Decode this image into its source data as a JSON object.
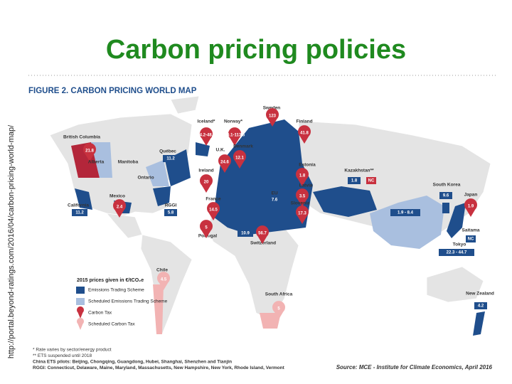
{
  "title": "Carbon pricing policies",
  "side_url": "http://portal.beyond-ratings.com/2016/04/carbon-pricing-world-map/",
  "figure": {
    "title": "FIGURE 2. CARBON PRICING WORLD MAP",
    "labels": [
      {
        "name": "British Columbia",
        "prices": [
          {
            "text": "21.8",
            "marker": "pin",
            "color": "#c8313f"
          }
        ]
      },
      {
        "name": "Alberta",
        "prices": []
      },
      {
        "name": "Manitoba",
        "prices": []
      },
      {
        "name": "Québec",
        "prices": [
          {
            "text": "11.2",
            "marker": "box",
            "color": "#1f4e8c"
          }
        ]
      },
      {
        "name": "Ontario",
        "prices": []
      },
      {
        "name": "California",
        "prices": [
          {
            "text": "11.2",
            "marker": "box",
            "color": "#1f4e8c"
          }
        ]
      },
      {
        "name": "Mexico",
        "prices": [
          {
            "text": "2.4",
            "marker": "pin",
            "color": "#c8313f"
          }
        ]
      },
      {
        "name": "RGGI",
        "prices": [
          {
            "text": "5.8",
            "marker": "box",
            "color": "#1f4e8c"
          }
        ]
      },
      {
        "name": "Chile",
        "prices": [
          {
            "text": "4.5",
            "marker": "pin",
            "color": "#f2b3b3"
          }
        ]
      },
      {
        "name": "Iceland*",
        "prices": [
          {
            "text": "34.2-48.6",
            "marker": "pin",
            "color": "#c8313f"
          }
        ]
      },
      {
        "name": "Norway*",
        "prices": [
          {
            "text": "30.1-113.6",
            "marker": "pin",
            "color": "#c8313f"
          }
        ]
      },
      {
        "name": "Sweden",
        "prices": [
          {
            "text": "123",
            "marker": "pin",
            "color": "#c8313f"
          }
        ]
      },
      {
        "name": "Finland",
        "prices": [
          {
            "text": "41.8",
            "marker": "pin",
            "color": "#c8313f"
          }
        ]
      },
      {
        "name": "Denmark",
        "prices": [
          {
            "text": "12.1",
            "marker": "pin",
            "color": "#c8313f"
          }
        ]
      },
      {
        "name": "U.K.",
        "prices": [
          {
            "text": "24.6",
            "marker": "pin",
            "color": "#c8313f"
          }
        ]
      },
      {
        "name": "Ireland",
        "prices": [
          {
            "text": "20",
            "marker": "pin",
            "color": "#c8313f"
          }
        ]
      },
      {
        "name": "Estonia",
        "prices": [
          {
            "text": "1.8",
            "marker": "pin",
            "color": "#c8313f"
          }
        ]
      },
      {
        "name": "Latvia",
        "prices": [
          {
            "text": "3.5",
            "marker": "pin",
            "color": "#c8313f"
          }
        ]
      },
      {
        "name": "France",
        "prices": [
          {
            "text": "14.5",
            "marker": "pin",
            "color": "#c8313f"
          }
        ]
      },
      {
        "name": "EU",
        "prices": [
          {
            "text": "7.6",
            "marker": "box",
            "color": "#1f4e8c"
          }
        ]
      },
      {
        "name": "Slovenia",
        "prices": [
          {
            "text": "17.3",
            "marker": "pin",
            "color": "#c8313f"
          }
        ]
      },
      {
        "name": "Portugal",
        "prices": [
          {
            "text": "5",
            "marker": "pin",
            "color": "#c8313f"
          }
        ]
      },
      {
        "name": "Switzerland",
        "prices": [
          {
            "text": "10.9",
            "marker": "box",
            "color": "#1f4e8c"
          },
          {
            "text": "56.7",
            "marker": "pin",
            "color": "#c8313f"
          }
        ]
      },
      {
        "name": "Kazakhstan**",
        "prices": [
          {
            "text": "1.8",
            "marker": "box",
            "color": "#1f4e8c"
          },
          {
            "text": "NC",
            "marker": "box",
            "color": "#c8313f"
          }
        ]
      },
      {
        "name": "China",
        "prices": [
          {
            "text": "1.9 - 8.4",
            "marker": "box",
            "color": "#1f4e8c"
          }
        ]
      },
      {
        "name": "South Korea",
        "prices": [
          {
            "text": "9.6",
            "marker": "box",
            "color": "#1f4e8c"
          }
        ]
      },
      {
        "name": "Japan",
        "prices": [
          {
            "text": "1.9",
            "marker": "pin",
            "color": "#c8313f"
          }
        ]
      },
      {
        "name": "Saitama",
        "prices": [
          {
            "text": "NC",
            "marker": "box",
            "color": "#1f4e8c"
          }
        ]
      },
      {
        "name": "Tokyo",
        "prices": [
          {
            "text": "22.3 - 44.7",
            "marker": "box",
            "color": "#1f4e8c"
          }
        ]
      },
      {
        "name": "South Africa",
        "prices": [
          {
            "text": "5",
            "marker": "pin",
            "color": "#f2b3b3"
          }
        ]
      },
      {
        "name": "New Zealand",
        "prices": [
          {
            "text": "4.2",
            "marker": "box",
            "color": "#1f4e8c"
          }
        ]
      }
    ],
    "legend": {
      "title": "2015 prices given in €/tCO₂e",
      "items": [
        {
          "label": "Emissions Trading Scheme",
          "marker": "box",
          "color": "#1f4e8c"
        },
        {
          "label": "Scheduled Emissions Trading Scheme",
          "marker": "box",
          "color": "#a9bfdf"
        },
        {
          "label": "Carbon Tax",
          "marker": "pin",
          "color": "#c8313f"
        },
        {
          "label": "Scheduled Carbon Tax",
          "marker": "pin",
          "color": "#f2b3b3"
        }
      ]
    },
    "notes": [
      "* Rate varies by sector/energy product",
      "** ETS suspended until 2018",
      "China ETS pilots: Beijing, Chongqing, Guangdong, Hubei, Shanghai, Shenzhen and Tianjin",
      "RGGI: Connecticut, Delaware, Maine, Maryland, Massachusetts, New Hampshire, New York, Rhode Island, Vermont"
    ],
    "source": "Source: MCE - Institute for Climate Economics, April 2016"
  }
}
